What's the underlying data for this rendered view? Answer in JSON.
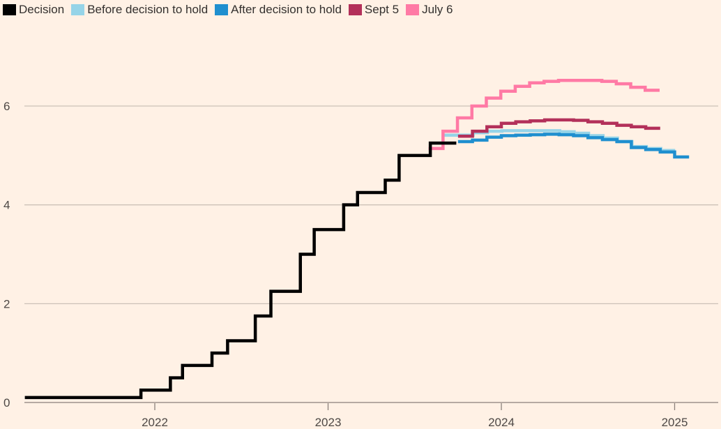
{
  "chart_data": {
    "type": "line",
    "title": "",
    "xlabel": "",
    "ylabel": "",
    "xlim": [
      2021.25,
      2025.25
    ],
    "ylim": [
      0,
      7
    ],
    "yticks": [
      0,
      2,
      4,
      6
    ],
    "ytick_labels": [
      "0",
      "2",
      "4",
      "6"
    ],
    "xticks": [
      2022,
      2023,
      2024,
      2025
    ],
    "xtick_labels": [
      "2022",
      "2023",
      "2024",
      "2025"
    ],
    "grid": true,
    "legend_position": "top-left",
    "step": true,
    "series": [
      {
        "name": "Decision",
        "color": "#000000",
        "x": [
          2021.25,
          2021.92,
          2022.09,
          2022.16,
          2022.33,
          2022.42,
          2022.58,
          2022.67,
          2022.84,
          2022.92,
          2023.09,
          2023.17,
          2023.33,
          2023.41,
          2023.59,
          2023.74
        ],
        "values": [
          0.1,
          0.25,
          0.5,
          0.75,
          1.0,
          1.25,
          1.75,
          2.25,
          3.0,
          3.5,
          4.0,
          4.25,
          4.5,
          5.0,
          5.25,
          5.25
        ]
      },
      {
        "name": "Before decision to hold",
        "color": "#96d4e8",
        "start": 2023.67,
        "values": [
          5.41,
          5.41,
          5.46,
          5.49,
          5.5,
          5.5,
          5.5,
          5.5,
          5.48,
          5.45,
          5.4,
          5.35,
          5.28,
          5.18,
          5.14,
          5.1
        ]
      },
      {
        "name": "After decision to hold",
        "color": "#1f8fcf",
        "start": 2023.75,
        "values": [
          5.28,
          5.31,
          5.37,
          5.4,
          5.41,
          5.42,
          5.43,
          5.42,
          5.4,
          5.36,
          5.32,
          5.28,
          5.16,
          5.12,
          5.07,
          4.97
        ]
      },
      {
        "name": "Sept 5",
        "color": "#b3305a",
        "start": 2023.75,
        "values": [
          5.39,
          5.49,
          5.58,
          5.65,
          5.68,
          5.7,
          5.72,
          5.72,
          5.71,
          5.68,
          5.65,
          5.61,
          5.58,
          5.55
        ]
      },
      {
        "name": "July 6",
        "color": "#ff7aa5",
        "start": 2023.58,
        "values": [
          5.14,
          5.49,
          5.76,
          6.0,
          6.16,
          6.3,
          6.4,
          6.47,
          6.5,
          6.52,
          6.52,
          6.52,
          6.5,
          6.45,
          6.38,
          6.32
        ]
      }
    ]
  },
  "legend": [
    "Decision",
    "Before decision to hold",
    "After decision to hold",
    "Sept 5",
    "July 6"
  ]
}
